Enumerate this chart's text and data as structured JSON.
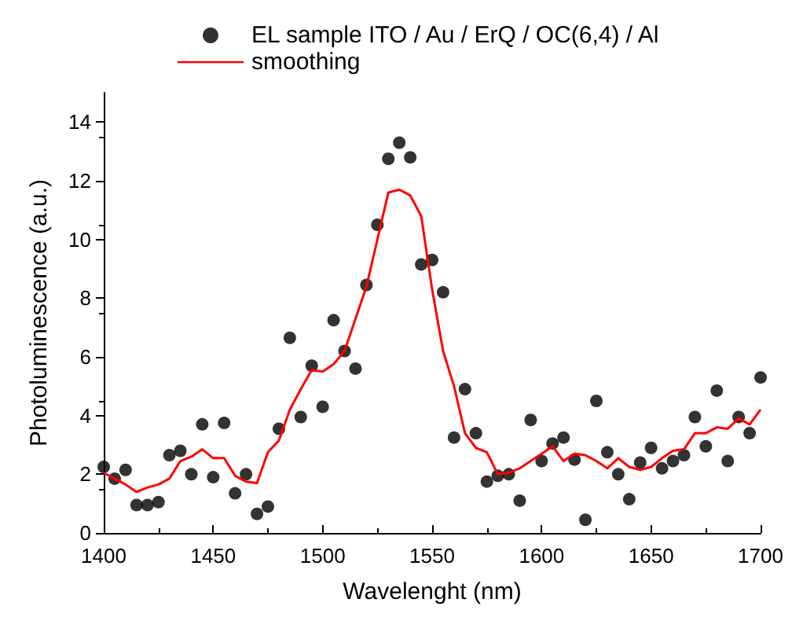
{
  "chart_data": {
    "type": "scatter",
    "xlabel": "Wavelenght (nm)",
    "ylabel": "Photoluminescence (a.u.)",
    "xlim": [
      1400,
      1700
    ],
    "xticks": [
      1400,
      1450,
      1500,
      1550,
      1600,
      1650,
      1700
    ],
    "ylim": [
      0,
      15
    ],
    "yticks": [
      0,
      2,
      4,
      6,
      8,
      10,
      12,
      14
    ],
    "grid": false,
    "legend": "top",
    "x": [
      1400,
      1405,
      1410,
      1415,
      1420,
      1425,
      1430,
      1435,
      1440,
      1445,
      1450,
      1455,
      1460,
      1465,
      1470,
      1475,
      1480,
      1485,
      1490,
      1495,
      1500,
      1505,
      1510,
      1515,
      1520,
      1525,
      1530,
      1535,
      1540,
      1545,
      1550,
      1555,
      1560,
      1565,
      1570,
      1575,
      1580,
      1585,
      1590,
      1595,
      1600,
      1605,
      1610,
      1615,
      1620,
      1625,
      1630,
      1635,
      1640,
      1645,
      1650,
      1655,
      1660,
      1665,
      1670,
      1675,
      1680,
      1685,
      1690,
      1695,
      1700
    ],
    "series": [
      {
        "name": "EL sample ITO / Au / ErQ / OC(6,4) / Al",
        "marker": "circle",
        "color": "#000000",
        "values": [
          2.25,
          1.85,
          2.15,
          0.95,
          0.95,
          1.05,
          2.65,
          2.8,
          2.0,
          3.7,
          1.9,
          3.75,
          1.35,
          2.0,
          0.65,
          0.9,
          3.55,
          6.65,
          3.95,
          5.7,
          4.3,
          7.25,
          6.2,
          5.6,
          8.45,
          10.5,
          12.75,
          13.3,
          12.8,
          9.15,
          9.3,
          8.2,
          3.25,
          4.9,
          3.4,
          1.75,
          1.95,
          2.0,
          1.1,
          3.85,
          2.45,
          3.05,
          3.25,
          2.5,
          0.45,
          4.5,
          2.75,
          2.0,
          1.15,
          2.4,
          2.9,
          2.2,
          2.45,
          2.65,
          3.95,
          2.95,
          4.85,
          2.45,
          3.95,
          3.4,
          5.3
        ]
      },
      {
        "name": "smoothing",
        "type": "line",
        "marker": "none",
        "color": "#ff0000",
        "values": [
          2.05,
          1.85,
          1.65,
          1.4,
          1.55,
          1.65,
          1.85,
          2.45,
          2.6,
          2.85,
          2.55,
          2.55,
          1.95,
          1.75,
          1.7,
          2.75,
          3.15,
          4.2,
          4.9,
          5.55,
          5.5,
          5.75,
          6.2,
          7.3,
          8.4,
          10.0,
          11.6,
          11.7,
          11.5,
          10.8,
          8.3,
          6.2,
          5.0,
          3.4,
          2.9,
          2.75,
          2.0,
          2.05,
          2.2,
          2.45,
          2.7,
          2.95,
          2.45,
          2.7,
          2.65,
          2.45,
          2.2,
          2.55,
          2.25,
          2.15,
          2.25,
          2.55,
          2.8,
          2.85,
          3.4,
          3.4,
          3.6,
          3.55,
          3.9,
          3.7,
          4.2
        ]
      }
    ]
  }
}
